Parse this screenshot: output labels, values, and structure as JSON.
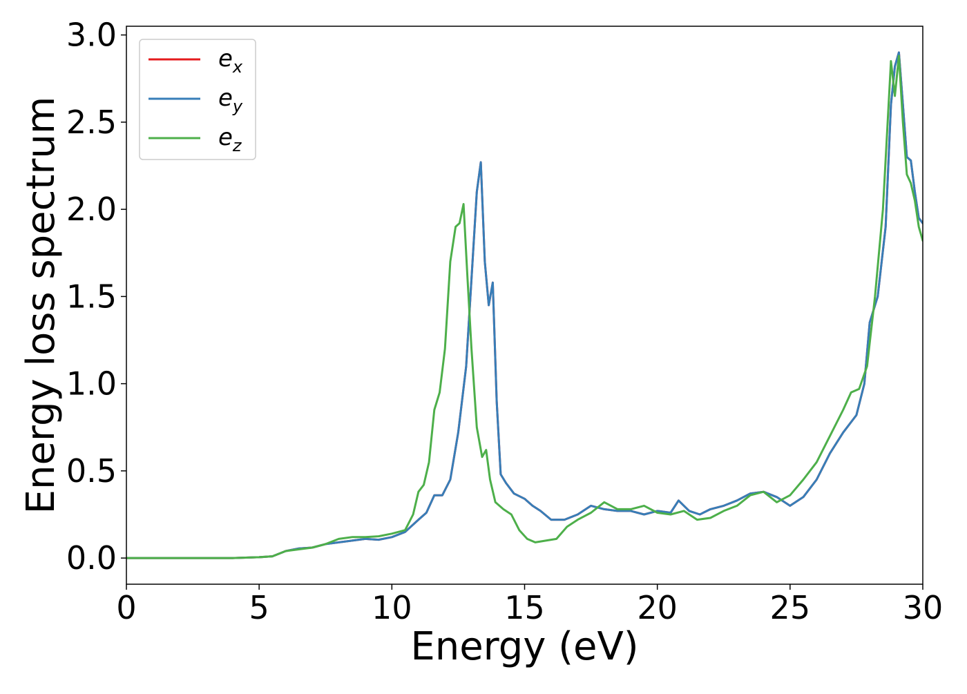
{
  "chart_data": {
    "type": "line",
    "title": "",
    "xlabel": "Energy (eV)",
    "ylabel": "Energy loss spectrum",
    "xlim": [
      0,
      30
    ],
    "ylim": [
      -0.15,
      3.05
    ],
    "xticks": [
      0,
      5,
      10,
      15,
      20,
      25,
      30
    ],
    "xtick_labels": [
      "0",
      "5",
      "10",
      "15",
      "20",
      "25",
      "30"
    ],
    "yticks": [
      0.0,
      0.5,
      1.0,
      1.5,
      2.0,
      2.5,
      3.0
    ],
    "ytick_labels": [
      "0.0",
      "0.5",
      "1.0",
      "1.5",
      "2.0",
      "2.5",
      "3.0"
    ],
    "grid": false,
    "legend_position": "top-left",
    "series": [
      {
        "name": "e",
        "subscript": "x",
        "color": "#e41a1c",
        "x": [
          0,
          2,
          4,
          5,
          5.5,
          6,
          6.5,
          7,
          7.5,
          8,
          8.5,
          9,
          9.5,
          10,
          10.5,
          11,
          11.3,
          11.6,
          11.9,
          12.2,
          12.5,
          12.8,
          13.0,
          13.2,
          13.35,
          13.5,
          13.65,
          13.8,
          13.95,
          14.1,
          14.3,
          14.6,
          15.0,
          15.3,
          15.6,
          16.0,
          16.5,
          17.0,
          17.5,
          18.0,
          18.5,
          19.0,
          19.5,
          20.0,
          20.5,
          20.8,
          21.2,
          21.6,
          22.0,
          22.5,
          23.0,
          23.5,
          24.0,
          24.5,
          25.0,
          25.5,
          26.0,
          26.5,
          27.0,
          27.5,
          27.8,
          28.0,
          28.3,
          28.6,
          28.8,
          28.95,
          29.1,
          29.25,
          29.4,
          29.55,
          29.7,
          29.85,
          30.0
        ],
        "y": [
          0.0,
          0.0,
          0.0,
          0.005,
          0.01,
          0.04,
          0.055,
          0.06,
          0.08,
          0.09,
          0.1,
          0.11,
          0.105,
          0.12,
          0.15,
          0.22,
          0.26,
          0.36,
          0.36,
          0.45,
          0.72,
          1.1,
          1.6,
          2.1,
          2.27,
          1.7,
          1.45,
          1.58,
          0.9,
          0.48,
          0.43,
          0.37,
          0.34,
          0.3,
          0.27,
          0.22,
          0.22,
          0.25,
          0.3,
          0.28,
          0.27,
          0.27,
          0.25,
          0.27,
          0.26,
          0.33,
          0.27,
          0.25,
          0.28,
          0.3,
          0.33,
          0.37,
          0.38,
          0.35,
          0.3,
          0.35,
          0.45,
          0.6,
          0.72,
          0.82,
          1.0,
          1.35,
          1.5,
          1.9,
          2.6,
          2.82,
          2.9,
          2.6,
          2.3,
          2.28,
          2.1,
          1.95,
          1.92
        ]
      },
      {
        "name": "e",
        "subscript": "y",
        "color": "#377eb8",
        "x": [
          0,
          2,
          4,
          5,
          5.5,
          6,
          6.5,
          7,
          7.5,
          8,
          8.5,
          9,
          9.5,
          10,
          10.5,
          11,
          11.3,
          11.6,
          11.9,
          12.2,
          12.5,
          12.8,
          13.0,
          13.2,
          13.35,
          13.5,
          13.65,
          13.8,
          13.95,
          14.1,
          14.3,
          14.6,
          15.0,
          15.3,
          15.6,
          16.0,
          16.5,
          17.0,
          17.5,
          18.0,
          18.5,
          19.0,
          19.5,
          20.0,
          20.5,
          20.8,
          21.2,
          21.6,
          22.0,
          22.5,
          23.0,
          23.5,
          24.0,
          24.5,
          25.0,
          25.5,
          26.0,
          26.5,
          27.0,
          27.5,
          27.8,
          28.0,
          28.3,
          28.6,
          28.8,
          28.95,
          29.1,
          29.25,
          29.4,
          29.55,
          29.7,
          29.85,
          30.0
        ],
        "y": [
          0.0,
          0.0,
          0.0,
          0.005,
          0.01,
          0.04,
          0.055,
          0.06,
          0.08,
          0.09,
          0.1,
          0.11,
          0.105,
          0.12,
          0.15,
          0.22,
          0.26,
          0.36,
          0.36,
          0.45,
          0.72,
          1.1,
          1.6,
          2.1,
          2.27,
          1.7,
          1.45,
          1.58,
          0.9,
          0.48,
          0.43,
          0.37,
          0.34,
          0.3,
          0.27,
          0.22,
          0.22,
          0.25,
          0.3,
          0.28,
          0.27,
          0.27,
          0.25,
          0.27,
          0.26,
          0.33,
          0.27,
          0.25,
          0.28,
          0.3,
          0.33,
          0.37,
          0.38,
          0.35,
          0.3,
          0.35,
          0.45,
          0.6,
          0.72,
          0.82,
          1.0,
          1.35,
          1.5,
          1.9,
          2.6,
          2.82,
          2.9,
          2.6,
          2.3,
          2.28,
          2.1,
          1.95,
          1.92
        ]
      },
      {
        "name": "e",
        "subscript": "z",
        "color": "#4daf4a",
        "x": [
          0,
          2,
          4,
          5,
          5.5,
          6,
          6.5,
          7,
          7.5,
          8,
          8.5,
          9,
          9.5,
          10,
          10.5,
          10.8,
          11.0,
          11.2,
          11.4,
          11.6,
          11.8,
          12.0,
          12.2,
          12.4,
          12.55,
          12.7,
          12.85,
          13.0,
          13.2,
          13.4,
          13.55,
          13.7,
          13.9,
          14.2,
          14.5,
          14.8,
          15.1,
          15.4,
          15.8,
          16.2,
          16.6,
          17.0,
          17.5,
          18.0,
          18.5,
          19.0,
          19.5,
          20.0,
          20.5,
          21.0,
          21.5,
          22.0,
          22.5,
          23.0,
          23.5,
          24.0,
          24.5,
          25.0,
          25.5,
          26.0,
          26.5,
          27.0,
          27.3,
          27.6,
          27.9,
          28.2,
          28.5,
          28.8,
          28.95,
          29.1,
          29.25,
          29.4,
          29.55,
          29.7,
          29.85,
          30.0
        ],
        "y": [
          0.0,
          0.0,
          0.0,
          0.005,
          0.01,
          0.04,
          0.05,
          0.06,
          0.08,
          0.11,
          0.12,
          0.12,
          0.125,
          0.14,
          0.16,
          0.25,
          0.38,
          0.42,
          0.55,
          0.85,
          0.95,
          1.2,
          1.7,
          1.9,
          1.92,
          2.03,
          1.6,
          1.2,
          0.75,
          0.58,
          0.62,
          0.45,
          0.32,
          0.28,
          0.25,
          0.16,
          0.11,
          0.09,
          0.1,
          0.11,
          0.18,
          0.22,
          0.26,
          0.32,
          0.28,
          0.28,
          0.3,
          0.26,
          0.25,
          0.27,
          0.22,
          0.23,
          0.27,
          0.3,
          0.36,
          0.38,
          0.32,
          0.36,
          0.45,
          0.55,
          0.7,
          0.85,
          0.95,
          0.97,
          1.1,
          1.5,
          2.0,
          2.85,
          2.65,
          2.88,
          2.5,
          2.2,
          2.15,
          2.05,
          1.9,
          1.82
        ]
      }
    ]
  }
}
